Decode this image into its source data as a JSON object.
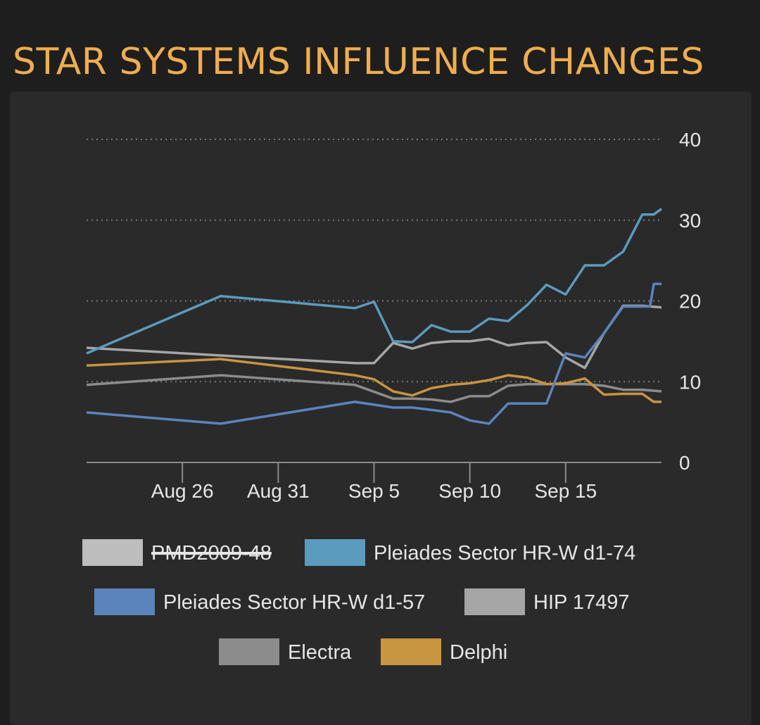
{
  "header": {
    "title": "STAR SYSTEMS INFLUENCE CHANGES"
  },
  "chart_data": {
    "type": "line",
    "title": "STAR SYSTEMS INFLUENCE CHANGES",
    "xlabel": "",
    "ylabel": "",
    "ylim": [
      0,
      40
    ],
    "yticks": [
      0,
      10,
      20,
      30,
      40
    ],
    "xlim": [
      "Aug 21",
      "Sep 20"
    ],
    "xticks": [
      "Aug 26",
      "Aug 31",
      "Sep 5",
      "Sep 10",
      "Sep 15"
    ],
    "x_tick_dates": [
      "2019-08-26",
      "2019-08-31",
      "2019-09-05",
      "2019-09-10",
      "2019-09-15"
    ],
    "grid": "horizontal dotted",
    "legend_position": "bottom",
    "series": [
      {
        "name": "PMD2009-48",
        "color": "#bdbdbd",
        "hidden": true,
        "x": [],
        "values": []
      },
      {
        "name": "Pleiades Sector HR-W d1-74",
        "color": "#5b9bbd",
        "x": [
          "Aug 21",
          "Aug 28",
          "Sep 4",
          "Sep 5",
          "Sep 6",
          "Sep 7",
          "Sep 8",
          "Sep 9",
          "Sep 10",
          "Sep 11",
          "Sep 12",
          "Sep 13",
          "Sep 14",
          "Sep 15",
          "Sep 16",
          "Sep 17",
          "Sep 18",
          "Sep 19",
          "Sep 19.2",
          "Sep 19.6",
          "Sep 20"
        ],
        "values": [
          13.5,
          20.6,
          19.1,
          19.9,
          15.0,
          14.9,
          17.0,
          16.2,
          16.2,
          17.8,
          17.5,
          19.5,
          22.0,
          20.8,
          24.4,
          24.4,
          26.1,
          30.7,
          30.7,
          30.7,
          31.4
        ]
      },
      {
        "name": "Pleiades Sector HR-W d1-57",
        "color": "#5b84bd",
        "x": [
          "Aug 21",
          "Aug 28",
          "Sep 4",
          "Sep 6",
          "Sep 7",
          "Sep 8",
          "Sep 9",
          "Sep 10",
          "Sep 11",
          "Sep 12",
          "Sep 13",
          "Sep 14",
          "Sep 15",
          "Sep 16",
          "Sep 17",
          "Sep 18",
          "Sep 19",
          "Sep 19.4",
          "Sep 19.6",
          "Sep 20"
        ],
        "values": [
          6.2,
          4.8,
          7.5,
          6.8,
          6.8,
          6.5,
          6.2,
          5.2,
          4.8,
          7.3,
          7.3,
          7.3,
          13.5,
          13.0,
          16.0,
          19.3,
          19.3,
          19.3,
          22.1,
          22.1
        ]
      },
      {
        "name": "HIP 17497",
        "color": "#a6a6a6",
        "x": [
          "Aug 21",
          "Sep 4",
          "Sep 5",
          "Sep 6",
          "Sep 7",
          "Sep 8",
          "Sep 9",
          "Sep 10",
          "Sep 11",
          "Sep 12",
          "Sep 13",
          "Sep 14",
          "Sep 15",
          "Sep 16",
          "Sep 17",
          "Sep 18",
          "Sep 19",
          "Sep 20"
        ],
        "values": [
          14.2,
          12.3,
          12.3,
          14.8,
          14.1,
          14.8,
          15.0,
          15.0,
          15.3,
          14.5,
          14.8,
          14.9,
          13.0,
          11.7,
          16.0,
          19.4,
          19.4,
          19.2
        ]
      },
      {
        "name": "Electra",
        "color": "#8c8c8c",
        "x": [
          "Aug 21",
          "Aug 28",
          "Sep 4",
          "Sep 6",
          "Sep 7",
          "Sep 8",
          "Sep 9",
          "Sep 10",
          "Sep 11",
          "Sep 12",
          "Sep 13",
          "Sep 14",
          "Sep 15",
          "Sep 16",
          "Sep 17",
          "Sep 18",
          "Sep 19",
          "Sep 20"
        ],
        "values": [
          9.6,
          10.8,
          9.6,
          7.9,
          7.9,
          7.8,
          7.5,
          8.2,
          8.2,
          9.5,
          9.7,
          9.7,
          9.7,
          9.7,
          9.5,
          9.0,
          9.0,
          8.8
        ]
      },
      {
        "name": "Delphi",
        "color": "#c89541",
        "x": [
          "Aug 21",
          "Aug 28",
          "Sep 4",
          "Sep 5",
          "Sep 6",
          "Sep 7",
          "Sep 8",
          "Sep 9",
          "Sep 10",
          "Sep 11",
          "Sep 12",
          "Sep 13",
          "Sep 14",
          "Sep 15",
          "Sep 16",
          "Sep 17",
          "Sep 18",
          "Sep 19",
          "Sep 19.6",
          "Sep 20"
        ],
        "values": [
          12.0,
          12.8,
          10.8,
          10.3,
          8.8,
          8.3,
          9.2,
          9.6,
          9.8,
          10.2,
          10.8,
          10.5,
          9.7,
          9.8,
          10.4,
          8.4,
          8.5,
          8.5,
          7.5,
          7.5
        ]
      }
    ]
  }
}
